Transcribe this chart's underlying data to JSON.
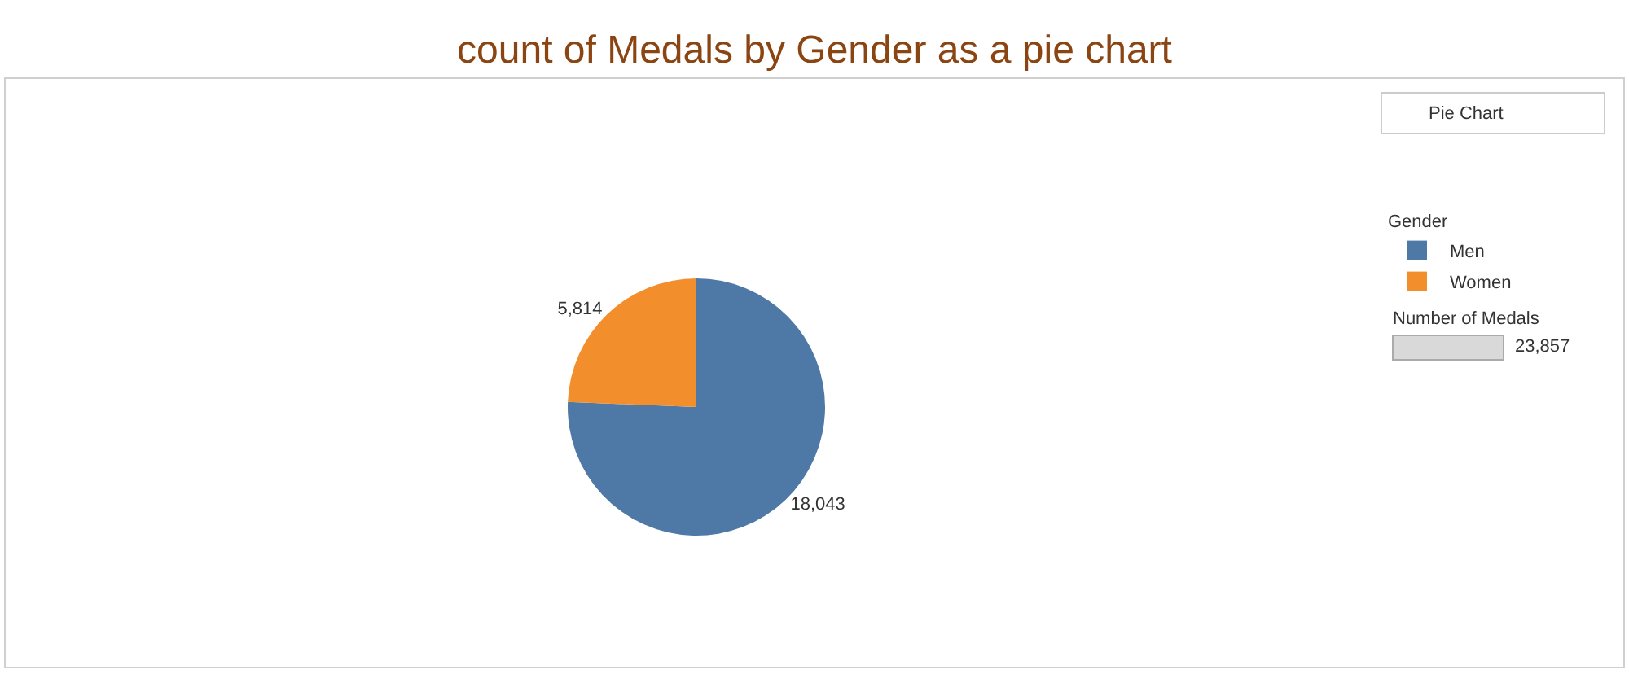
{
  "chart_data": {
    "type": "pie",
    "title": "count of Medals by Gender as a pie chart",
    "categories": [
      "Men",
      "Women"
    ],
    "values": [
      18043,
      5814
    ],
    "colors": [
      "#4e79a7",
      "#f28e2b"
    ],
    "value_labels": [
      "18,043",
      "5,814"
    ],
    "legend": "top right",
    "legend_title": "Gender",
    "annotations": [
      "Pie Chart",
      "Number of Medals",
      "23,857"
    ]
  }
}
